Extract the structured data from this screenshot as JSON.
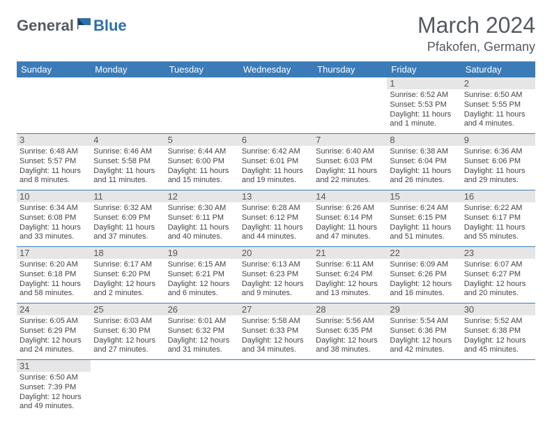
{
  "logo": {
    "part1": "General",
    "part2": "Blue"
  },
  "title": "March 2024",
  "location": "Pfakofen, Germany",
  "colors": {
    "header_bg": "#3b7cb8",
    "header_text": "#ffffff",
    "daynum_bg": "#e6e6e6",
    "border": "#3b7cb8",
    "logo_gray": "#555a60",
    "logo_blue": "#2f6fa8"
  },
  "weekdays": [
    "Sunday",
    "Monday",
    "Tuesday",
    "Wednesday",
    "Thursday",
    "Friday",
    "Saturday"
  ],
  "first_weekday_index": 5,
  "days": [
    {
      "n": 1,
      "sunrise": "6:52 AM",
      "sunset": "5:53 PM",
      "daylight": "11 hours and 1 minute."
    },
    {
      "n": 2,
      "sunrise": "6:50 AM",
      "sunset": "5:55 PM",
      "daylight": "11 hours and 4 minutes."
    },
    {
      "n": 3,
      "sunrise": "6:48 AM",
      "sunset": "5:57 PM",
      "daylight": "11 hours and 8 minutes."
    },
    {
      "n": 4,
      "sunrise": "6:46 AM",
      "sunset": "5:58 PM",
      "daylight": "11 hours and 11 minutes."
    },
    {
      "n": 5,
      "sunrise": "6:44 AM",
      "sunset": "6:00 PM",
      "daylight": "11 hours and 15 minutes."
    },
    {
      "n": 6,
      "sunrise": "6:42 AM",
      "sunset": "6:01 PM",
      "daylight": "11 hours and 19 minutes."
    },
    {
      "n": 7,
      "sunrise": "6:40 AM",
      "sunset": "6:03 PM",
      "daylight": "11 hours and 22 minutes."
    },
    {
      "n": 8,
      "sunrise": "6:38 AM",
      "sunset": "6:04 PM",
      "daylight": "11 hours and 26 minutes."
    },
    {
      "n": 9,
      "sunrise": "6:36 AM",
      "sunset": "6:06 PM",
      "daylight": "11 hours and 29 minutes."
    },
    {
      "n": 10,
      "sunrise": "6:34 AM",
      "sunset": "6:08 PM",
      "daylight": "11 hours and 33 minutes."
    },
    {
      "n": 11,
      "sunrise": "6:32 AM",
      "sunset": "6:09 PM",
      "daylight": "11 hours and 37 minutes."
    },
    {
      "n": 12,
      "sunrise": "6:30 AM",
      "sunset": "6:11 PM",
      "daylight": "11 hours and 40 minutes."
    },
    {
      "n": 13,
      "sunrise": "6:28 AM",
      "sunset": "6:12 PM",
      "daylight": "11 hours and 44 minutes."
    },
    {
      "n": 14,
      "sunrise": "6:26 AM",
      "sunset": "6:14 PM",
      "daylight": "11 hours and 47 minutes."
    },
    {
      "n": 15,
      "sunrise": "6:24 AM",
      "sunset": "6:15 PM",
      "daylight": "11 hours and 51 minutes."
    },
    {
      "n": 16,
      "sunrise": "6:22 AM",
      "sunset": "6:17 PM",
      "daylight": "11 hours and 55 minutes."
    },
    {
      "n": 17,
      "sunrise": "6:20 AM",
      "sunset": "6:18 PM",
      "daylight": "11 hours and 58 minutes."
    },
    {
      "n": 18,
      "sunrise": "6:17 AM",
      "sunset": "6:20 PM",
      "daylight": "12 hours and 2 minutes."
    },
    {
      "n": 19,
      "sunrise": "6:15 AM",
      "sunset": "6:21 PM",
      "daylight": "12 hours and 6 minutes."
    },
    {
      "n": 20,
      "sunrise": "6:13 AM",
      "sunset": "6:23 PM",
      "daylight": "12 hours and 9 minutes."
    },
    {
      "n": 21,
      "sunrise": "6:11 AM",
      "sunset": "6:24 PM",
      "daylight": "12 hours and 13 minutes."
    },
    {
      "n": 22,
      "sunrise": "6:09 AM",
      "sunset": "6:26 PM",
      "daylight": "12 hours and 16 minutes."
    },
    {
      "n": 23,
      "sunrise": "6:07 AM",
      "sunset": "6:27 PM",
      "daylight": "12 hours and 20 minutes."
    },
    {
      "n": 24,
      "sunrise": "6:05 AM",
      "sunset": "6:29 PM",
      "daylight": "12 hours and 24 minutes."
    },
    {
      "n": 25,
      "sunrise": "6:03 AM",
      "sunset": "6:30 PM",
      "daylight": "12 hours and 27 minutes."
    },
    {
      "n": 26,
      "sunrise": "6:01 AM",
      "sunset": "6:32 PM",
      "daylight": "12 hours and 31 minutes."
    },
    {
      "n": 27,
      "sunrise": "5:58 AM",
      "sunset": "6:33 PM",
      "daylight": "12 hours and 34 minutes."
    },
    {
      "n": 28,
      "sunrise": "5:56 AM",
      "sunset": "6:35 PM",
      "daylight": "12 hours and 38 minutes."
    },
    {
      "n": 29,
      "sunrise": "5:54 AM",
      "sunset": "6:36 PM",
      "daylight": "12 hours and 42 minutes."
    },
    {
      "n": 30,
      "sunrise": "5:52 AM",
      "sunset": "6:38 PM",
      "daylight": "12 hours and 45 minutes."
    },
    {
      "n": 31,
      "sunrise": "6:50 AM",
      "sunset": "7:39 PM",
      "daylight": "12 hours and 49 minutes."
    }
  ],
  "labels": {
    "sunrise": "Sunrise:",
    "sunset": "Sunset:",
    "daylight": "Daylight:"
  }
}
